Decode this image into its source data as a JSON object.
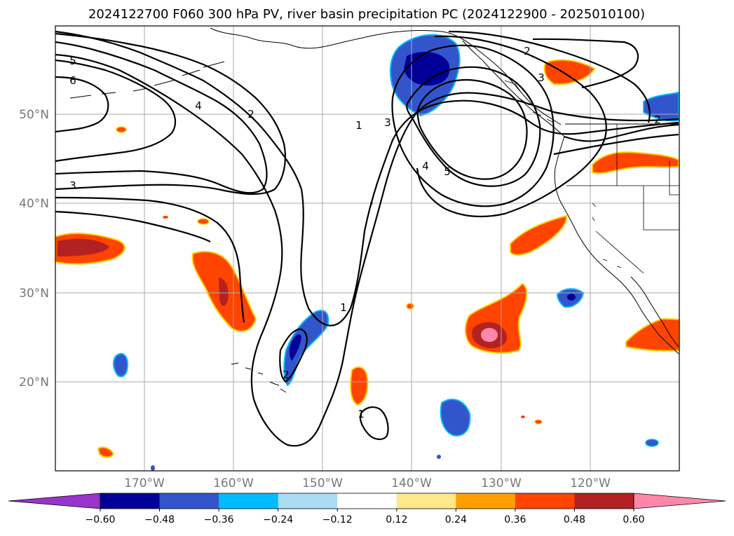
{
  "title": "2024122700 F060 300 hPa PV, river basin precipitation PC (2024122900 - 2025010100)",
  "colors": {
    "c_m60": "#9933cc",
    "c_m48": "#000099",
    "c_m36": "#3355cc",
    "c_m24": "#00bbff",
    "c_m12": "#aaddf5",
    "c_0": "#ffffff",
    "c_12": "#ffe88a",
    "c_24": "#ff9f00",
    "c_36": "#ff4400",
    "c_48": "#b22222",
    "c_60": "#ff88aa"
  },
  "map": {
    "lon_labels": [
      "170°W",
      "160°W",
      "150°W",
      "140°W",
      "130°W",
      "120°W"
    ],
    "lat_labels": [
      "50°N",
      "40°N",
      "30°N",
      "20°N"
    ],
    "contour_labels": [
      "5",
      "6",
      "4",
      "2",
      "3",
      "1",
      "3",
      "4",
      "5",
      "2",
      "3",
      "1",
      "2",
      "1",
      "2"
    ]
  },
  "colorbar": {
    "ticks": [
      "−0.60",
      "−0.48",
      "−0.36",
      "−0.24",
      "−0.12",
      "0.12",
      "0.24",
      "0.36",
      "0.48",
      "0.60"
    ],
    "segments": [
      "c_m48",
      "c_m36",
      "c_m24",
      "c_m12",
      "c_0",
      "c_12",
      "c_24",
      "c_36",
      "c_48"
    ]
  }
}
